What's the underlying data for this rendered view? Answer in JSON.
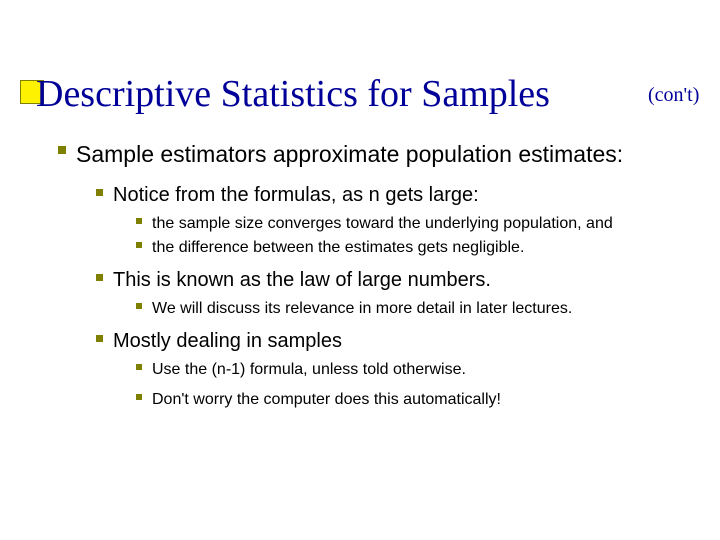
{
  "title": {
    "main": "Descriptive Statistics for Samples",
    "suffix": "(con't)"
  },
  "colors": {
    "accent_fill": "#fef200",
    "accent_border": "#808000",
    "bullet": "#808000",
    "title_text": "#000099",
    "body_text": "#000000",
    "background": "#ffffff"
  },
  "fonts": {
    "title_family": "Times New Roman",
    "body_family": "Verdana",
    "title_size_pt": 38,
    "suffix_size_pt": 20,
    "lvl1_size_pt": 23,
    "lvl2_size_pt": 20,
    "lvl3_size_pt": 16
  },
  "outline": {
    "lvl1_text": "Sample estimators approximate population estimates:",
    "sections": [
      {
        "lvl2_text": "Notice from the formulas, as n gets large:",
        "lvl3_items": [
          "the sample size converges toward the underlying population, and",
          "the difference between the estimates gets negligible."
        ]
      },
      {
        "lvl2_text": "This is known as the law of large numbers.",
        "lvl3_items": [
          "We will discuss its relevance in more detail in later lectures."
        ]
      },
      {
        "lvl2_text": "Mostly dealing in samples",
        "lvl3_items": [
          "Use the (n-1) formula, unless told otherwise.",
          "Don't worry the computer does this automatically!"
        ]
      }
    ]
  }
}
